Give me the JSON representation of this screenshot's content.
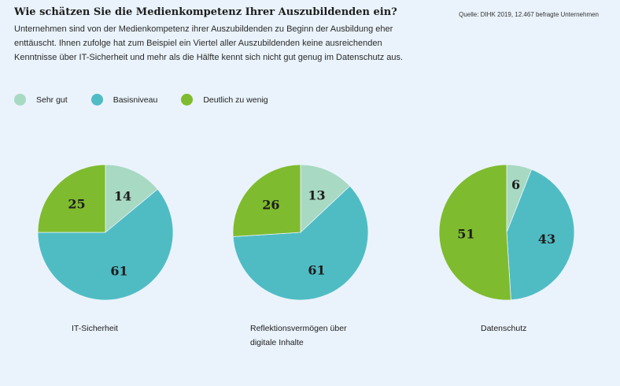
{
  "header": {
    "title": "Wie schätzen Sie die Medienkompetenz Ihrer Auszubildenden ein?",
    "subtitle": "Unternehmen sind von der Medienkompetenz ihrer Auszubildenden zu Beginn der Ausbildung eher enttäuscht. Ihnen zufolge hat zum Beispiel ein Viertel aller Auszubildenden keine ausreichenden Kenntnisse über IT-Sicherheit und mehr als die Hälfte kennt sich nicht gut genug im Datenschutz aus.",
    "source": "Quelle: DIHK 2019, 12.467 befragte Unternehmen"
  },
  "colors": {
    "sehr_gut": "#a8d9c2",
    "basisniveau": "#4fbcc4",
    "deutlich": "#7fbb2e"
  },
  "chart_data": {
    "type": "pie",
    "title": "Wie schätzen Sie die Medienkompetenz Ihrer Auszubildenden ein?",
    "legend": [
      "Sehr gut",
      "Basisniveau",
      "Deutlich zu wenig"
    ],
    "legend_position": "top-left",
    "charts": [
      {
        "label": "IT-Sicherheit",
        "values": [
          14,
          61,
          25
        ]
      },
      {
        "label": "Reflektionsvermögen über digitale Inhalte",
        "values": [
          13,
          61,
          26
        ]
      },
      {
        "label": "Datenschutz",
        "values": [
          6,
          43,
          51
        ]
      }
    ]
  }
}
